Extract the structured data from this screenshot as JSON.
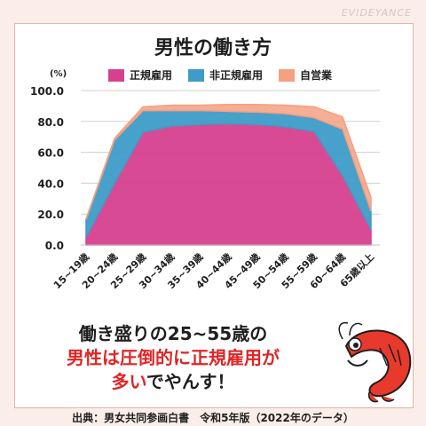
{
  "watermark": "EVIDEYANCE",
  "title": "男性の働き方",
  "unit": "(%)",
  "legend": [
    {
      "label": "正規雇用",
      "color": "#d6418e"
    },
    {
      "label": "非正規雇用",
      "color": "#3e9cc7"
    },
    {
      "label": "自営業",
      "color": "#f4a081"
    }
  ],
  "message": {
    "line1": "働き盛りの25~55歳の",
    "line2": "男性は圧倒的に正規雇用が",
    "line3_red": "多い",
    "line3_black": "でやんす！"
  },
  "source": "出典：男女共同参画白書　令和5年版（2022年のデータ）",
  "chart_data": {
    "type": "area",
    "stacked": true,
    "categories": [
      "15~19歳",
      "20~24歳",
      "25~29歳",
      "30~34歳",
      "35~39歳",
      "40~44歳",
      "45~49歳",
      "50~54歳",
      "55~59歳",
      "60~64歳",
      "65歳以上"
    ],
    "series": [
      {
        "name": "正規雇用",
        "color": "#d6418e",
        "values": [
          5,
          40,
          73,
          77,
          78,
          78.5,
          78,
          76.5,
          73.5,
          45,
          10
        ]
      },
      {
        "name": "非正規雇用",
        "color": "#3e9cc7",
        "values": [
          11.5,
          28,
          14,
          10,
          9,
          8,
          8,
          8.5,
          9,
          30,
          12
        ]
      },
      {
        "name": "自営業",
        "color": "#f4a081",
        "values": [
          0.5,
          1,
          2.5,
          3.5,
          3.5,
          4.5,
          5,
          5.5,
          7,
          8,
          9
        ]
      }
    ],
    "yticks": [
      "0.0",
      "20.0",
      "40.0",
      "60.0",
      "80.0",
      "100.0"
    ],
    "ylim": [
      0,
      100
    ],
    "grid": true
  }
}
